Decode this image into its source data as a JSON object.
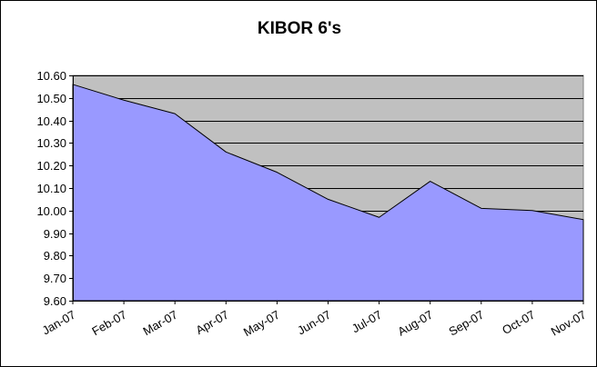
{
  "chart_data": {
    "type": "area",
    "title": "KIBOR 6's",
    "xlabel": "",
    "ylabel": "",
    "categories": [
      "Jan-07",
      "Feb-07",
      "Mar-07",
      "Apr-07",
      "May-07",
      "Jun-07",
      "Jul-07",
      "Aug-07",
      "Sep-07",
      "Oct-07",
      "Nov-07"
    ],
    "series": [
      {
        "values": [
          10.56,
          10.49,
          10.43,
          10.26,
          10.17,
          10.05,
          9.97,
          10.13,
          10.01,
          10.0,
          9.96
        ]
      }
    ],
    "ylim": [
      9.6,
      10.6
    ],
    "yticks": [
      "9.60",
      "9.70",
      "9.80",
      "9.90",
      "10.00",
      "10.10",
      "10.20",
      "10.30",
      "10.40",
      "10.50",
      "10.60"
    ],
    "grid": true,
    "legend": "none",
    "colors": {
      "plot_background": "#c0c0c0",
      "area_fill": "#9999ff",
      "area_line": "#000000",
      "gridline": "#000000"
    }
  }
}
